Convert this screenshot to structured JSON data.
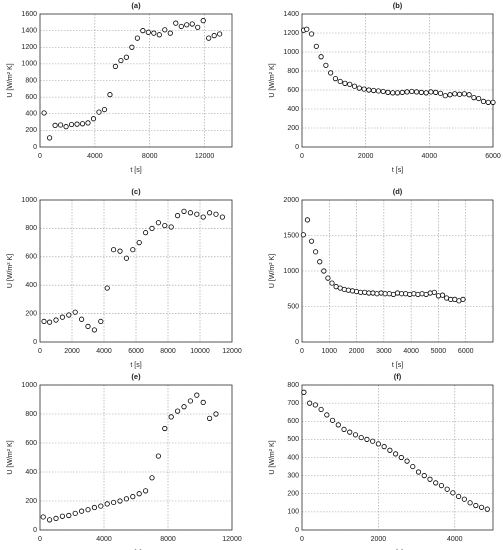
{
  "chart_data": [
    {
      "type": "scatter",
      "title": "(a)",
      "x_label": "t [s]",
      "y_label": "U [W/m² K]",
      "grid": true,
      "color": "#000000",
      "x": [
        300,
        700,
        1100,
        1500,
        1900,
        2300,
        2700,
        3100,
        3500,
        3900,
        4300,
        4700,
        5100,
        5500,
        5900,
        6300,
        6700,
        7100,
        7500,
        7900,
        8300,
        8700,
        9100,
        9500,
        9900,
        10300,
        10700,
        11100,
        11500,
        11900,
        12300,
        12700,
        13100
      ],
      "values": [
        410,
        110,
        260,
        265,
        245,
        270,
        275,
        280,
        290,
        340,
        420,
        450,
        630,
        970,
        1040,
        1080,
        1200,
        1310,
        1400,
        1380,
        1370,
        1350,
        1410,
        1370,
        1490,
        1450,
        1470,
        1480,
        1440,
        1520,
        1310,
        1340,
        1360
      ],
      "xlim": [
        0,
        14000
      ],
      "xticks": [
        0,
        4000,
        8000,
        12000
      ],
      "ylim": [
        0,
        1600
      ],
      "yticks": [
        0,
        200,
        400,
        600,
        800,
        1000,
        1200,
        1400,
        1600
      ]
    },
    {
      "type": "scatter",
      "title": "(b)",
      "x_label": "t [s]",
      "y_label": "U [W/m² K]",
      "grid": true,
      "color": "#000000",
      "x": [
        50,
        150,
        300,
        450,
        600,
        750,
        900,
        1050,
        1200,
        1350,
        1500,
        1650,
        1800,
        1950,
        2100,
        2250,
        2400,
        2550,
        2700,
        2850,
        3000,
        3150,
        3300,
        3450,
        3600,
        3750,
        3900,
        4050,
        4200,
        4350,
        4500,
        4650,
        4800,
        4950,
        5100,
        5250,
        5400,
        5550,
        5700,
        5850,
        6000
      ],
      "values": [
        1230,
        1240,
        1190,
        1060,
        950,
        860,
        780,
        720,
        690,
        670,
        660,
        640,
        620,
        610,
        600,
        595,
        590,
        585,
        575,
        570,
        570,
        575,
        580,
        585,
        580,
        575,
        570,
        580,
        575,
        565,
        540,
        550,
        560,
        555,
        560,
        550,
        520,
        510,
        480,
        470,
        470
      ],
      "xlim": [
        0,
        6000
      ],
      "xticks": [
        0,
        2000,
        4000,
        6000
      ],
      "ylim": [
        0,
        1400
      ],
      "yticks": [
        0,
        200,
        400,
        600,
        800,
        1000,
        1200,
        1400
      ]
    },
    {
      "type": "scatter",
      "title": "(c)",
      "x_label": "t [s]",
      "y_label": "U [W/m² K]",
      "grid": true,
      "color": "#000000",
      "x": [
        250,
        600,
        1000,
        1400,
        1800,
        2200,
        2600,
        3000,
        3400,
        3800,
        4200,
        4600,
        5000,
        5400,
        5800,
        6200,
        6600,
        7000,
        7400,
        7800,
        8200,
        8600,
        9000,
        9400,
        9800,
        10200,
        10600,
        11000,
        11400
      ],
      "values": [
        145,
        140,
        155,
        175,
        190,
        210,
        160,
        110,
        85,
        145,
        380,
        650,
        640,
        590,
        650,
        700,
        770,
        800,
        840,
        820,
        810,
        890,
        920,
        910,
        900,
        880,
        910,
        900,
        880
      ],
      "xlim": [
        0,
        12000
      ],
      "xticks": [
        0,
        2000,
        4000,
        6000,
        8000,
        10000,
        12000
      ],
      "ylim": [
        0,
        1000
      ],
      "yticks": [
        0,
        200,
        400,
        600,
        800,
        1000
      ]
    },
    {
      "type": "scatter",
      "title": "(d)",
      "x_label": "t [s]",
      "y_label": "U [W/m² K]",
      "grid": true,
      "color": "#000000",
      "x": [
        50,
        200,
        350,
        500,
        650,
        800,
        950,
        1100,
        1250,
        1400,
        1550,
        1700,
        1850,
        2000,
        2150,
        2300,
        2450,
        2600,
        2750,
        2900,
        3050,
        3200,
        3350,
        3500,
        3650,
        3800,
        3950,
        4100,
        4250,
        4400,
        4550,
        4700,
        4850,
        5000,
        5150,
        5300,
        5450,
        5600,
        5750,
        5900
      ],
      "values": [
        1510,
        1720,
        1420,
        1270,
        1130,
        1000,
        900,
        830,
        780,
        760,
        740,
        730,
        720,
        710,
        700,
        700,
        690,
        690,
        680,
        690,
        680,
        680,
        670,
        690,
        680,
        680,
        670,
        680,
        670,
        680,
        670,
        690,
        700,
        650,
        660,
        620,
        600,
        600,
        580,
        600
      ],
      "xlim": [
        0,
        7000
      ],
      "xticks": [
        0,
        1000,
        2000,
        3000,
        4000,
        5000,
        6000
      ],
      "ylim": [
        0,
        2000
      ],
      "yticks": [
        0,
        500,
        1000,
        1500,
        2000
      ]
    },
    {
      "type": "scatter",
      "title": "(e)",
      "x_label": "t [s]",
      "y_label": "U [W/m² K]",
      "grid": true,
      "color": "#000000",
      "x": [
        200,
        600,
        1000,
        1400,
        1800,
        2200,
        2600,
        3000,
        3400,
        3800,
        4200,
        4600,
        5000,
        5400,
        5800,
        6200,
        6600,
        7000,
        7400,
        7800,
        8200,
        8600,
        9000,
        9400,
        9800,
        10200,
        10600,
        11000
      ],
      "values": [
        90,
        70,
        80,
        95,
        100,
        115,
        130,
        140,
        155,
        165,
        180,
        190,
        200,
        215,
        230,
        250,
        270,
        360,
        510,
        700,
        780,
        820,
        850,
        890,
        930,
        880,
        770,
        800
      ],
      "xlim": [
        0,
        12000
      ],
      "xticks": [
        0,
        4000,
        8000,
        12000
      ],
      "ylim": [
        0,
        1000
      ],
      "yticks": [
        0,
        200,
        400,
        600,
        800,
        1000
      ]
    },
    {
      "type": "scatter",
      "title": "(f)",
      "x_label": "t [s]",
      "y_label": "U [W/m² K]",
      "grid": true,
      "color": "#000000",
      "x": [
        50,
        200,
        350,
        500,
        650,
        800,
        950,
        1100,
        1250,
        1400,
        1550,
        1700,
        1850,
        2000,
        2150,
        2300,
        2450,
        2600,
        2750,
        2900,
        3050,
        3200,
        3350,
        3500,
        3650,
        3800,
        3950,
        4100,
        4250,
        4400,
        4550,
        4700,
        4850
      ],
      "values": [
        760,
        700,
        690,
        665,
        635,
        605,
        580,
        555,
        540,
        525,
        510,
        500,
        490,
        475,
        460,
        440,
        420,
        400,
        380,
        350,
        320,
        300,
        280,
        260,
        245,
        225,
        205,
        185,
        170,
        150,
        135,
        125,
        115
      ],
      "xlim": [
        0,
        5000
      ],
      "xticks": [
        0,
        2000,
        4000
      ],
      "ylim": [
        0,
        800
      ],
      "yticks": [
        0,
        100,
        200,
        300,
        400,
        500,
        600,
        700,
        800
      ]
    }
  ]
}
